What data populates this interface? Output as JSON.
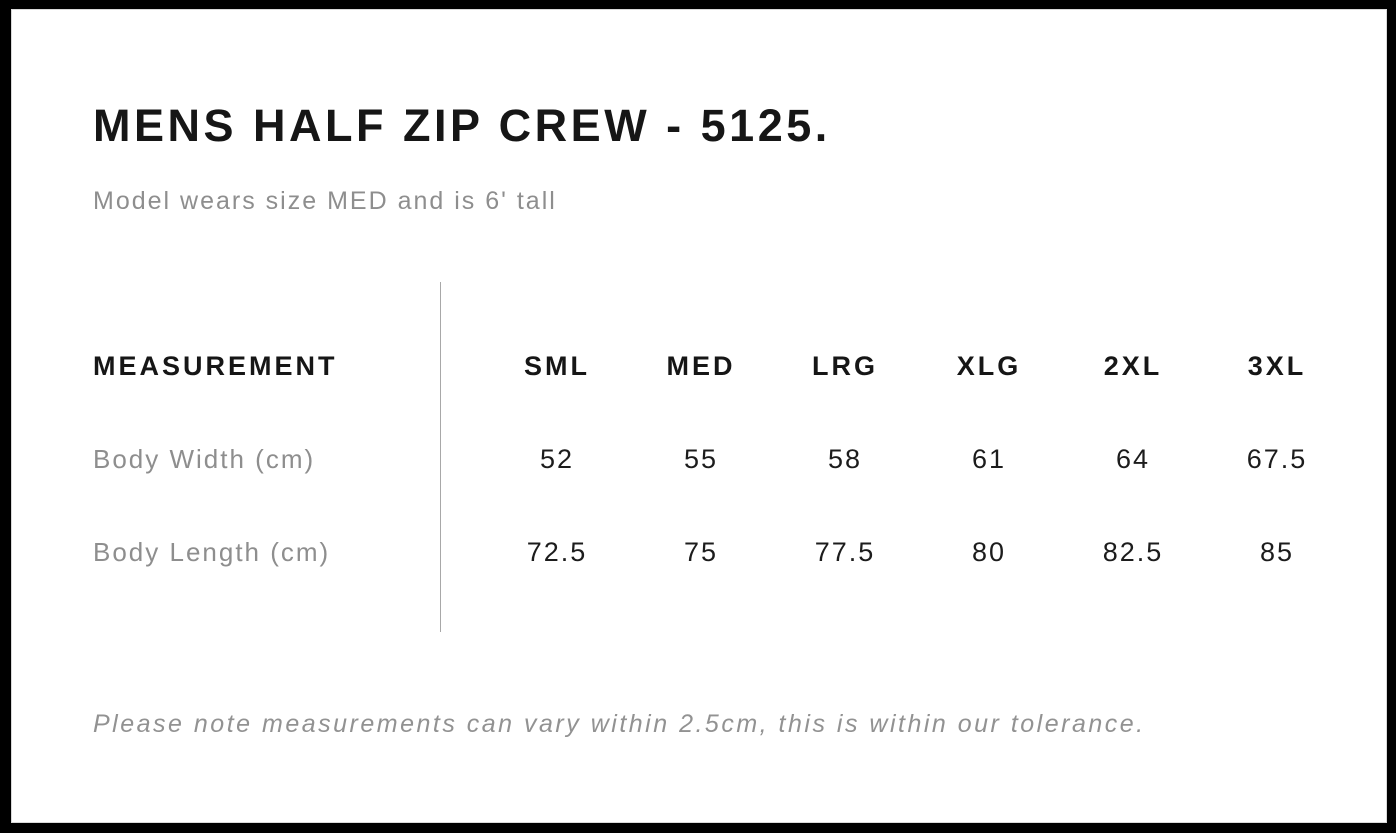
{
  "header": {
    "title": "MENS HALF ZIP CREW - 5125.",
    "subtitle": "Model wears size MED and is 6' tall"
  },
  "chart_data": {
    "type": "table",
    "title": "MENS HALF ZIP CREW - 5125.",
    "subtitle": "Model wears size MED and is 6' tall",
    "label_header": "MEASUREMENT",
    "columns": [
      "SML",
      "MED",
      "LRG",
      "XLG",
      "2XL",
      "3XL"
    ],
    "rows": [
      {
        "label": "Body Width (cm)",
        "values": [
          "52",
          "55",
          "58",
          "61",
          "64",
          "67.5"
        ]
      },
      {
        "label": "Body Length (cm)",
        "values": [
          "72.5",
          "75",
          "77.5",
          "80",
          "82.5",
          "85"
        ]
      }
    ]
  },
  "footer": {
    "note": "Please note measurements can vary within 2.5cm, this is within our tolerance."
  },
  "colors": {
    "text_primary": "#161616",
    "text_muted": "#8e8e8e",
    "divider": "#a8a8a8",
    "frame": "#000000",
    "background": "#ffffff"
  }
}
